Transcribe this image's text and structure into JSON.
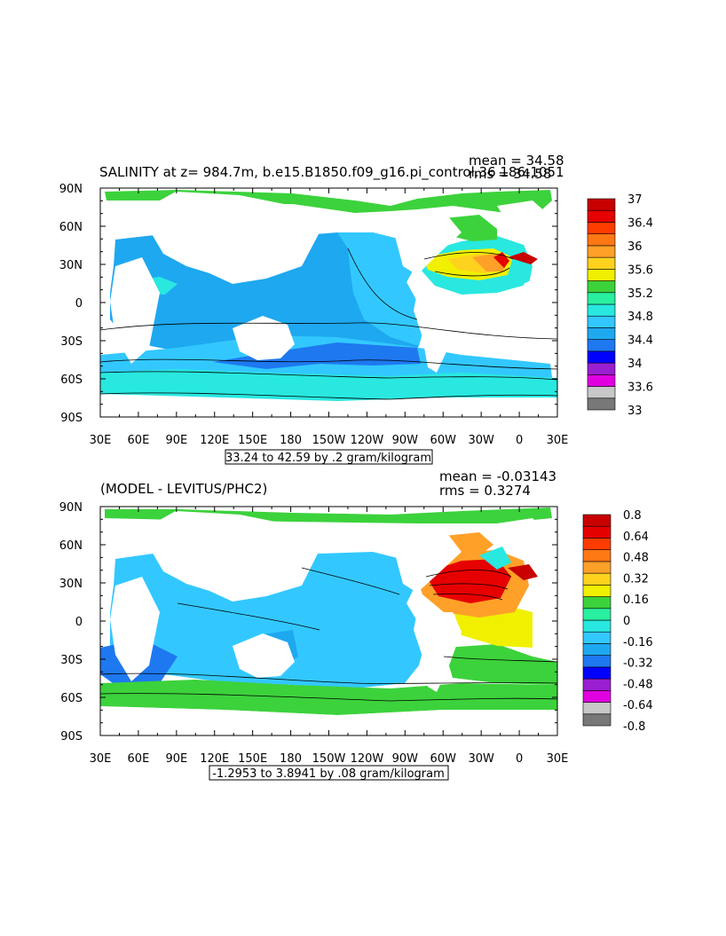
{
  "colors": {
    "land": "#ffffff",
    "frame": "#000000",
    "top_palette": [
      "#787878",
      "#c8c8c8",
      "#e000e0",
      "#9a1fd0",
      "#0000ff",
      "#1e78f0",
      "#1ea8f0",
      "#32c8ff",
      "#28e8e0",
      "#28f0a0",
      "#3cd23c",
      "#f0f000",
      "#ffd21e",
      "#ffa028",
      "#ff7814",
      "#ff3c00",
      "#e60000",
      "#c80000"
    ],
    "bottom_palette": [
      "#787878",
      "#c8c8c8",
      "#e000e0",
      "#9a1fd0",
      "#0000ff",
      "#1e78f0",
      "#1ea8f0",
      "#32c8ff",
      "#28e8e0",
      "#28f0a0",
      "#3cd23c",
      "#f0f000",
      "#ffd21e",
      "#ffa028",
      "#ff7814",
      "#ff3c00",
      "#e60000",
      "#c80000"
    ]
  },
  "chart_data": [
    {
      "type": "heatmap",
      "title": "SALINITY at z= 984.7m, b.e15.B1850.f09_g16.pi_control.36 186-1051",
      "stats": {
        "mean": "mean = 34.58",
        "rms": "rms = 34.58"
      },
      "x_ticks": [
        "30E",
        "60E",
        "90E",
        "120E",
        "150E",
        "180",
        "150W",
        "120W",
        "90W",
        "60W",
        "30W",
        "0",
        "30E"
      ],
      "y_ticks": [
        "90N",
        "60N",
        "30N",
        "0",
        "30S",
        "60S",
        "90S"
      ],
      "range_label": "33.24 to 42.59 by .2 gram/kilogram",
      "colorbar_labels": [
        "37",
        "36.4",
        "36",
        "35.6",
        "35.2",
        "34.8",
        "34.4",
        "34",
        "33.6",
        "33"
      ],
      "colorbar_levels": [
        33.0,
        33.2,
        33.4,
        33.6,
        33.8,
        34.0,
        34.2,
        34.4,
        34.6,
        34.8,
        35.0,
        35.2,
        35.4,
        35.6,
        35.8,
        36.0,
        36.2,
        36.4,
        37.0
      ]
    },
    {
      "type": "heatmap",
      "title": "(MODEL - LEVITUS/PHC2)",
      "stats": {
        "mean": "mean = -0.03143",
        "rms": "rms = 0.3274"
      },
      "x_ticks": [
        "30E",
        "60E",
        "90E",
        "120E",
        "150E",
        "180",
        "150W",
        "120W",
        "90W",
        "60W",
        "30W",
        "0",
        "30E"
      ],
      "y_ticks": [
        "90N",
        "60N",
        "30N",
        "0",
        "30S",
        "60S",
        "90S"
      ],
      "range_label": "-1.2953 to 3.8941 by .08 gram/kilogram",
      "colorbar_labels": [
        "0.8",
        "0.64",
        "0.48",
        "0.32",
        "0.16",
        "0",
        "-0.16",
        "-0.32",
        "-0.48",
        "-0.64",
        "-0.8"
      ],
      "colorbar_levels": [
        -0.8,
        -0.72,
        -0.64,
        -0.56,
        -0.48,
        -0.4,
        -0.32,
        -0.24,
        -0.16,
        -0.08,
        0,
        0.08,
        0.16,
        0.24,
        0.32,
        0.4,
        0.48,
        0.64,
        0.8
      ]
    }
  ]
}
